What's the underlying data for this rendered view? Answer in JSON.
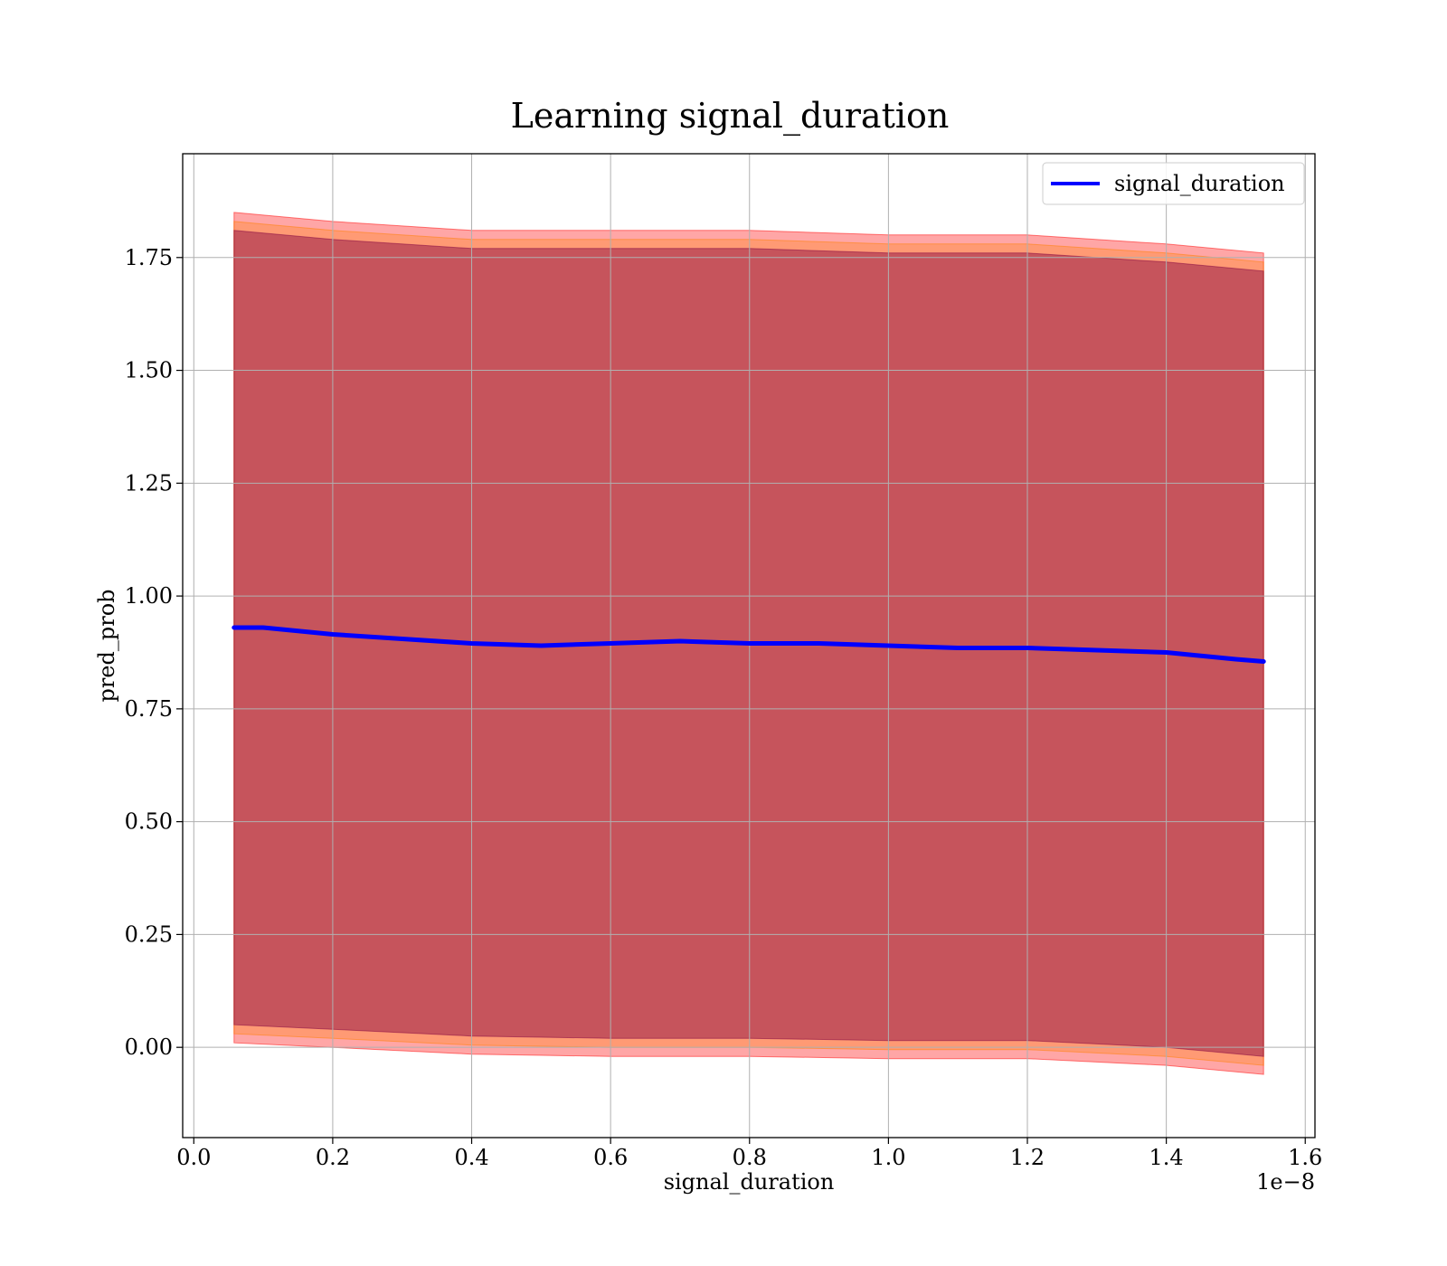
{
  "chart_data": {
    "type": "line",
    "title": "Learning signal_duration",
    "xlabel": "signal_duration",
    "ylabel": "pred_prob",
    "x_offset_label": "1e−8",
    "xlim": [
      -0.016,
      1.614
    ],
    "ylim": [
      -0.2,
      1.98
    ],
    "x_ticks": [
      0.0,
      0.2,
      0.4,
      0.6,
      0.8,
      1.0,
      1.2,
      1.4,
      1.6
    ],
    "x_tick_labels": [
      "0.0",
      "0.2",
      "0.4",
      "0.6",
      "0.8",
      "1.0",
      "1.2",
      "1.4",
      "1.6"
    ],
    "y_ticks": [
      0.0,
      0.25,
      0.5,
      0.75,
      1.0,
      1.25,
      1.5,
      1.75
    ],
    "y_tick_labels": [
      "0.00",
      "0.25",
      "0.50",
      "0.75",
      "1.00",
      "1.25",
      "1.50",
      "1.75"
    ],
    "grid": true,
    "legend_position": "top-right",
    "series": [
      {
        "name": "signal_duration",
        "color": "#0000ff",
        "x": [
          0.058,
          0.1,
          0.2,
          0.3,
          0.4,
          0.5,
          0.6,
          0.7,
          0.8,
          0.9,
          1.0,
          1.1,
          1.2,
          1.3,
          1.4,
          1.5,
          1.54
        ],
        "values": [
          0.93,
          0.93,
          0.915,
          0.905,
          0.895,
          0.89,
          0.895,
          0.9,
          0.895,
          0.895,
          0.89,
          0.885,
          0.885,
          0.88,
          0.875,
          0.86,
          0.855
        ]
      }
    ],
    "bands": [
      {
        "color": "#ff0000",
        "opacity": 0.35,
        "x": [
          0.058,
          0.2,
          0.4,
          0.6,
          0.8,
          1.0,
          1.2,
          1.4,
          1.54
        ],
        "upper": [
          1.85,
          1.83,
          1.81,
          1.81,
          1.81,
          1.8,
          1.8,
          1.78,
          1.76
        ],
        "lower": [
          0.01,
          0.0,
          -0.015,
          -0.02,
          -0.02,
          -0.025,
          -0.025,
          -0.04,
          -0.06
        ]
      },
      {
        "color": "#ff7f00",
        "opacity": 0.3,
        "x": [
          0.058,
          0.2,
          0.4,
          0.6,
          0.8,
          1.0,
          1.2,
          1.4,
          1.54
        ],
        "upper": [
          1.83,
          1.81,
          1.79,
          1.79,
          1.79,
          1.78,
          1.78,
          1.76,
          1.74
        ],
        "lower": [
          0.03,
          0.02,
          0.005,
          0.0,
          0.0,
          -0.005,
          -0.005,
          -0.02,
          -0.04
        ]
      },
      {
        "color": "#800040",
        "opacity": 0.45,
        "x": [
          0.058,
          0.2,
          0.4,
          0.6,
          0.8,
          1.0,
          1.2,
          1.4,
          1.54
        ],
        "upper": [
          1.81,
          1.79,
          1.77,
          1.77,
          1.77,
          1.76,
          1.76,
          1.74,
          1.72
        ],
        "lower": [
          0.05,
          0.04,
          0.025,
          0.02,
          0.02,
          0.015,
          0.015,
          0.0,
          -0.02
        ]
      }
    ]
  }
}
